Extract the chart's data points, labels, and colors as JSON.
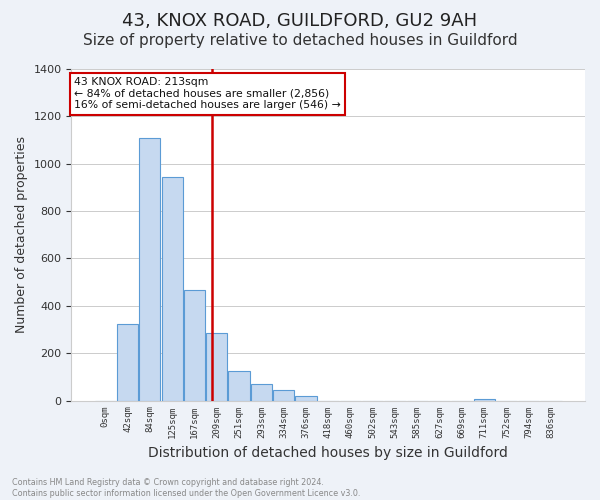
{
  "title": "43, KNOX ROAD, GUILDFORD, GU2 9AH",
  "subtitle": "Size of property relative to detached houses in Guildford",
  "xlabel": "Distribution of detached houses by size in Guildford",
  "ylabel": "Number of detached properties",
  "bar_values": [
    0,
    325,
    1110,
    945,
    465,
    285,
    125,
    70,
    45,
    20,
    0,
    0,
    0,
    0,
    0,
    0,
    0,
    5,
    0,
    0,
    0
  ],
  "bar_labels": [
    "0sqm",
    "42sqm",
    "84sqm",
    "125sqm",
    "167sqm",
    "209sqm",
    "251sqm",
    "293sqm",
    "334sqm",
    "376sqm",
    "418sqm",
    "460sqm",
    "502sqm",
    "543sqm",
    "585sqm",
    "627sqm",
    "669sqm",
    "711sqm",
    "752sqm",
    "794sqm",
    "836sqm"
  ],
  "bar_color": "#c6d9f0",
  "bar_edge_color": "#5b9bd5",
  "reference_line_x": 4.77,
  "reference_line_color": "#cc0000",
  "annotation_line1": "43 KNOX ROAD: 213sqm",
  "annotation_line2": "← 84% of detached houses are smaller (2,856)",
  "annotation_line3": "16% of semi-detached houses are larger (546) →",
  "annotation_box_color": "#ffffff",
  "annotation_box_edge": "#cc0000",
  "ylim": [
    0,
    1400
  ],
  "yticks": [
    0,
    200,
    400,
    600,
    800,
    1000,
    1200,
    1400
  ],
  "footer_text": "Contains HM Land Registry data © Crown copyright and database right 2024.\nContains public sector information licensed under the Open Government Licence v3.0.",
  "title_fontsize": 13,
  "subtitle_fontsize": 11,
  "xlabel_fontsize": 10,
  "ylabel_fontsize": 9,
  "background_color": "#eef2f8",
  "plot_bg_color": "#ffffff"
}
